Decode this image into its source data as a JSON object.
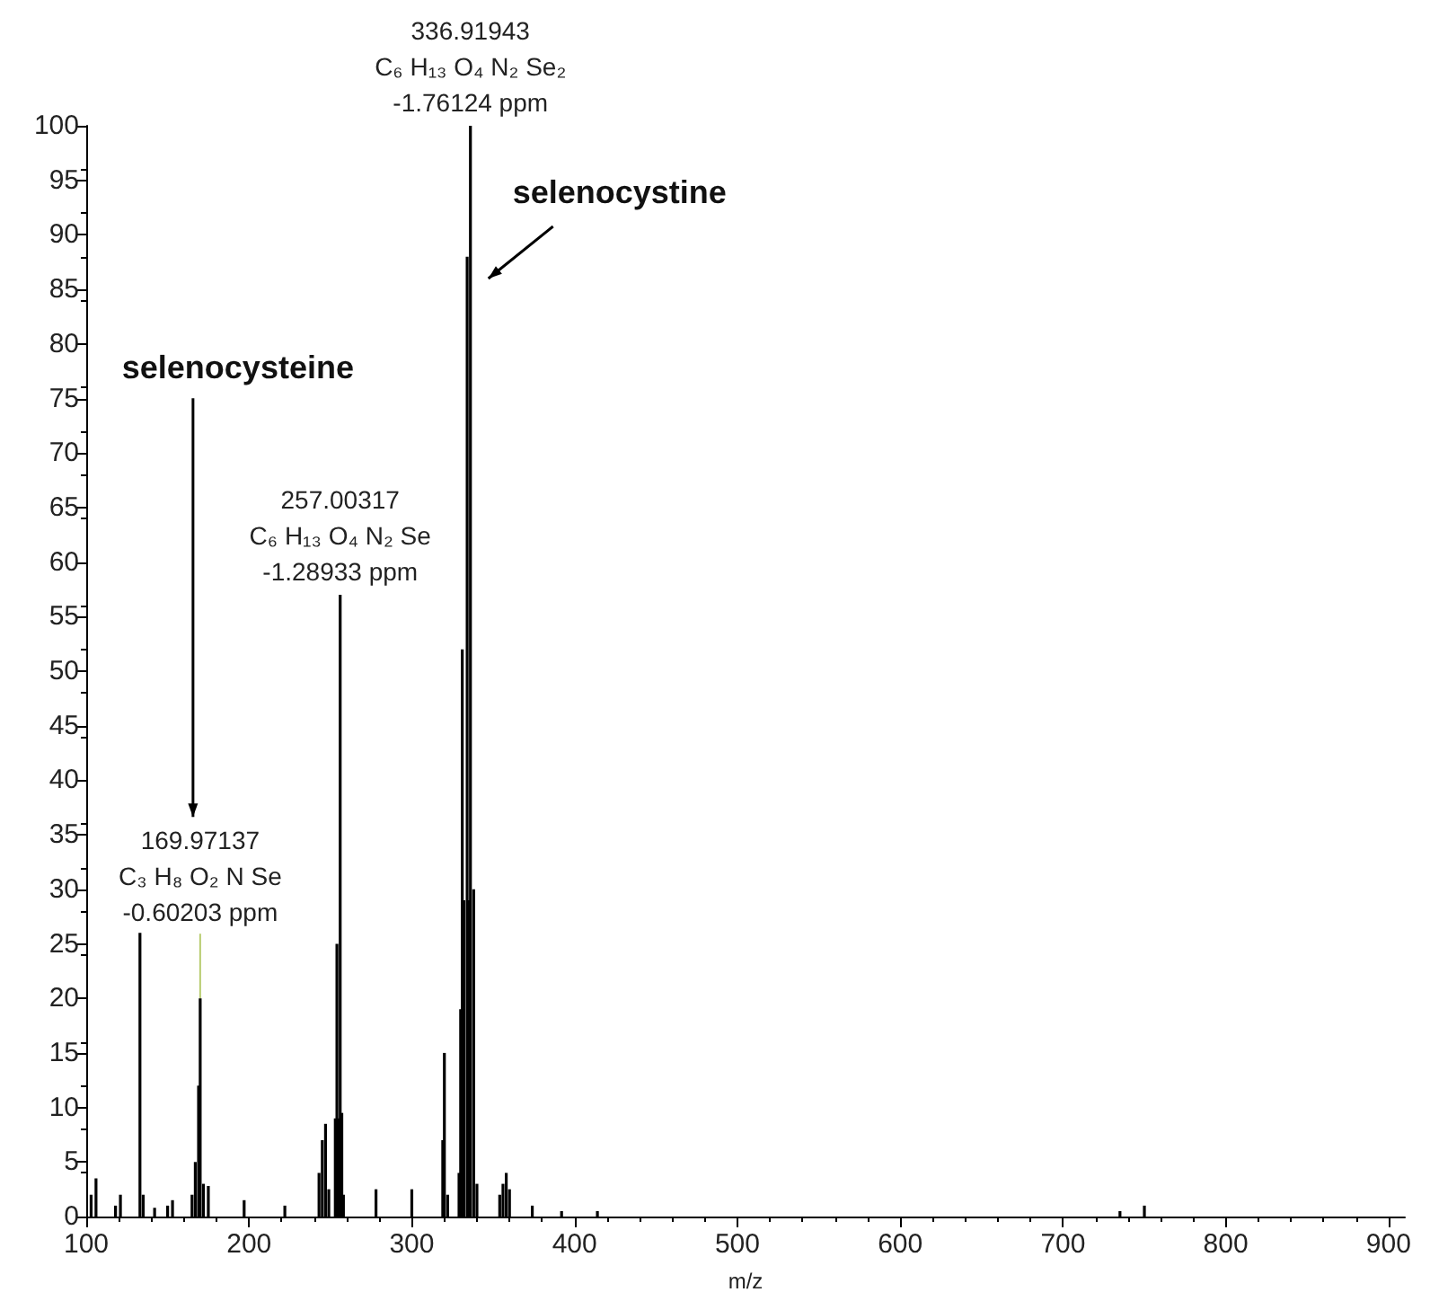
{
  "chart_data": {
    "type": "bar",
    "xlabel": "m/z",
    "color": "#000000",
    "x": [
      103,
      106,
      118,
      121,
      133,
      135,
      142,
      150,
      153,
      165,
      167,
      168,
      169,
      170,
      172,
      175,
      197,
      222,
      243,
      245,
      247,
      249,
      253,
      254,
      255,
      256,
      257,
      258,
      278,
      300,
      319,
      320,
      322,
      329,
      330,
      331,
      332,
      333,
      334,
      335,
      336,
      338,
      340,
      354,
      356,
      358,
      360,
      374,
      392,
      414,
      735,
      750
    ],
    "values": [
      2,
      3.5,
      1,
      2,
      26,
      2,
      0.8,
      1,
      1.5,
      2,
      5,
      null,
      12,
      20,
      3,
      2.8,
      1.5,
      1,
      4,
      7,
      8.5,
      2.5,
      9,
      25,
      9,
      57,
      9.5,
      2,
      2.5,
      2.5,
      7,
      15,
      2,
      4,
      19,
      52,
      29,
      null,
      88,
      29,
      100,
      30,
      3,
      2,
      3,
      4,
      2.5,
      1,
      0.5,
      0.5,
      0.5,
      1
    ],
    "xlim": [
      100,
      910
    ],
    "xticks": [
      100,
      200,
      300,
      400,
      500,
      600,
      700,
      800,
      900
    ],
    "ylim": [
      0,
      100
    ],
    "yticks": [
      0,
      5,
      10,
      15,
      20,
      25,
      30,
      35,
      40,
      45,
      50,
      55,
      60,
      65,
      70,
      75,
      80,
      85,
      90,
      95,
      100
    ],
    "grid": false,
    "annotations": [
      {
        "text": "336.91943\nC₆ H₁₃ O₄ N₂ Se₂\n-1.76124 ppm",
        "x": 336,
        "y": 100
      },
      {
        "text": "257.00317\nC₆ H₁₃ O₄ N₂ Se\n-1.28933 ppm",
        "x": 256,
        "y": 57
      },
      {
        "text": "169.97137\nC₃ H₈ O₂ N Se\n-0.60203 ppm",
        "x": 170,
        "y": 20
      },
      "selenocysteine",
      "selenocystine"
    ]
  }
}
